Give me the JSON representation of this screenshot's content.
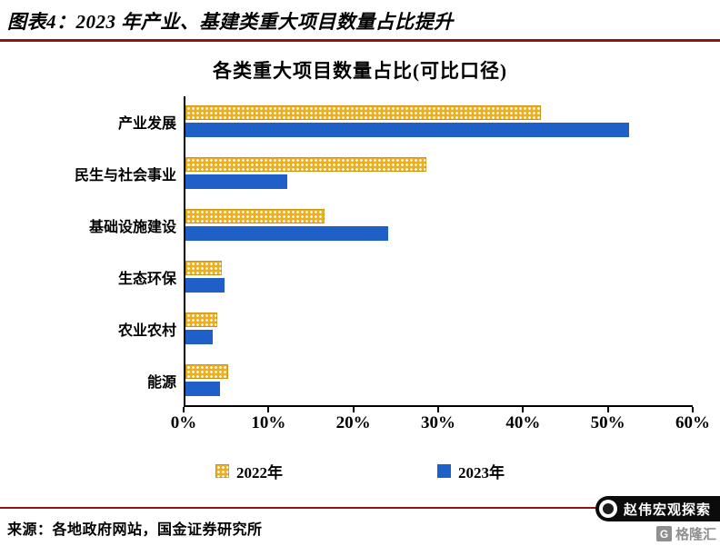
{
  "header": {
    "title": "图表4：2023 年产业、基建类重大项目数量占比提升"
  },
  "chart": {
    "title": "各类重大项目数量占比(可比口径)"
  },
  "chart_data": {
    "type": "bar",
    "orientation": "horizontal",
    "title": "各类重大项目数量占比(可比口径)",
    "categories": [
      "产业发展",
      "民生与社会事业",
      "基础设施建设",
      "生态环保",
      "农业农村",
      "能源"
    ],
    "series": [
      {
        "name": "2022年",
        "color": "#EDAF1F",
        "pattern": "white-dots",
        "values": [
          42,
          28.5,
          16.5,
          4.3,
          3.8,
          5
        ]
      },
      {
        "name": "2023年",
        "color": "#1F5FC8",
        "pattern": "solid",
        "values": [
          52.5,
          12,
          24,
          4.6,
          3.2,
          4.1
        ]
      }
    ],
    "xlim": [
      0,
      60
    ],
    "x_ticks": [
      "0%",
      "10%",
      "20%",
      "30%",
      "40%",
      "50%",
      "60%"
    ],
    "x_unit": "%",
    "grid": false,
    "legend_position": "bottom"
  },
  "footer": {
    "source": "来源：各地政府网站，国金证券研究所",
    "watermark_badge": "赵伟宏观探索",
    "logo_mark": "G",
    "logo_text": "格隆汇"
  },
  "colors": {
    "accent_rule": "#8E1515",
    "bar_2022": "#EDAF1F",
    "bar_2023": "#1F5FC8",
    "axis": "#000000",
    "badge_bg": "#0b0b0b"
  }
}
